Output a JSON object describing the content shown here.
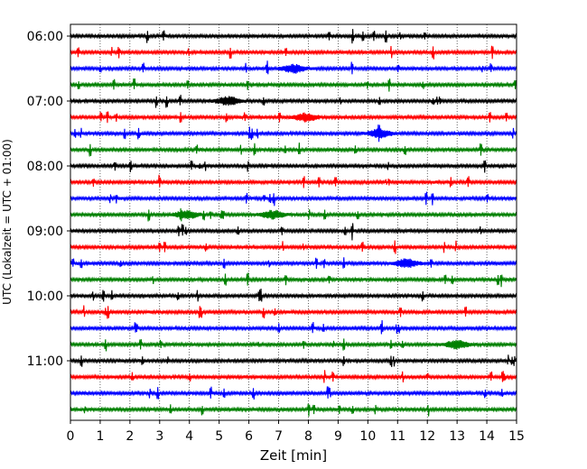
{
  "chart_data": {
    "type": "line",
    "title": "",
    "xlabel": "Zeit  [min]",
    "ylabel": "UTC (Lokalzeit = UTC + 01:00)",
    "xlim": [
      0,
      15
    ],
    "x_ticks": [
      0,
      1,
      2,
      3,
      4,
      5,
      6,
      7,
      8,
      9,
      10,
      11,
      12,
      13,
      14,
      15
    ],
    "y_tick_labels": [
      "06:00",
      "07:00",
      "08:00",
      "09:00",
      "10:00",
      "11:00"
    ],
    "grid": "vertical dotted lines at each minute",
    "trace_minutes": 15,
    "trace_colors": [
      "#000000",
      "#ff0000",
      "#0000ff",
      "#008000"
    ],
    "traces": [
      {
        "start": "06:00",
        "color": "#000000"
      },
      {
        "start": "06:15",
        "color": "#ff0000"
      },
      {
        "start": "06:30",
        "color": "#0000ff"
      },
      {
        "start": "06:45",
        "color": "#008000"
      },
      {
        "start": "07:00",
        "color": "#000000"
      },
      {
        "start": "07:15",
        "color": "#ff0000"
      },
      {
        "start": "07:30",
        "color": "#0000ff"
      },
      {
        "start": "07:45",
        "color": "#008000"
      },
      {
        "start": "08:00",
        "color": "#000000"
      },
      {
        "start": "08:15",
        "color": "#ff0000"
      },
      {
        "start": "08:30",
        "color": "#0000ff"
      },
      {
        "start": "08:45",
        "color": "#008000"
      },
      {
        "start": "09:00",
        "color": "#000000"
      },
      {
        "start": "09:15",
        "color": "#ff0000"
      },
      {
        "start": "09:30",
        "color": "#0000ff"
      },
      {
        "start": "09:45",
        "color": "#008000"
      },
      {
        "start": "10:00",
        "color": "#000000"
      },
      {
        "start": "10:15",
        "color": "#ff0000"
      },
      {
        "start": "10:30",
        "color": "#0000ff"
      },
      {
        "start": "10:45",
        "color": "#008000"
      },
      {
        "start": "11:00",
        "color": "#000000"
      },
      {
        "start": "11:15",
        "color": "#ff0000"
      },
      {
        "start": "11:30",
        "color": "#0000ff"
      },
      {
        "start": "11:45",
        "color": "#008000"
      }
    ],
    "notable_events": [
      {
        "trace": "07:30",
        "minute": 10.4
      },
      {
        "trace": "10:45",
        "minute": 13.0
      },
      {
        "trace": "09:30",
        "minute": 11.3
      },
      {
        "trace": "08:45",
        "minute": 3.9
      },
      {
        "trace": "08:45",
        "minute": 6.8
      },
      {
        "trace": "07:15",
        "minute": 7.9
      },
      {
        "trace": "06:30",
        "minute": 7.5
      },
      {
        "trace": "07:00",
        "minute": 5.3
      }
    ]
  }
}
